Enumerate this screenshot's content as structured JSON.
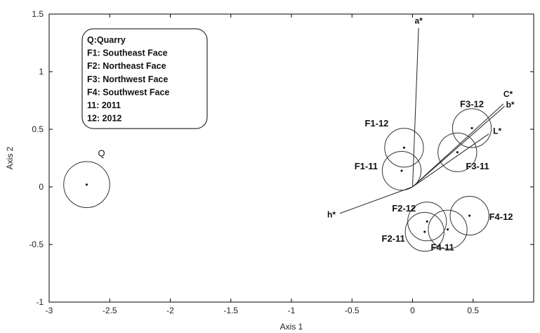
{
  "chart_data": {
    "type": "scatter",
    "xlabel": "Axis 1",
    "ylabel": "Axis 2",
    "xlim": [
      -3,
      1
    ],
    "ylim": [
      -1,
      1.5
    ],
    "xticks": [
      "-3",
      "-2.5",
      "-2",
      "-1.5",
      "-1",
      "-0.5",
      "0",
      "0.5"
    ],
    "yticks": [
      "-1",
      "-0.5",
      "0",
      "0.5",
      "1",
      "1.5"
    ],
    "xtick_values": [
      -3,
      -2.5,
      -2,
      -1.5,
      -1,
      -0.5,
      0,
      0.5
    ],
    "ytick_values": [
      -1,
      -0.5,
      0,
      0.5,
      1,
      1.5
    ],
    "points": [
      {
        "label": "Q",
        "x": -2.69,
        "y": 0.02,
        "r": 0.19
      },
      {
        "label": "F1-12",
        "x": -0.07,
        "y": 0.34,
        "r": 0.16
      },
      {
        "label": "F1-11",
        "x": -0.09,
        "y": 0.14,
        "r": 0.16
      },
      {
        "label": "F3-12",
        "x": 0.49,
        "y": 0.51,
        "r": 0.16
      },
      {
        "label": "F3-11",
        "x": 0.37,
        "y": 0.3,
        "r": 0.16
      },
      {
        "label": "F2-12",
        "x": 0.12,
        "y": -0.3,
        "r": 0.16
      },
      {
        "label": "F2-11",
        "x": 0.1,
        "y": -0.39,
        "r": 0.16
      },
      {
        "label": "F4-11",
        "x": 0.29,
        "y": -0.37,
        "r": 0.16
      },
      {
        "label": "F4-12",
        "x": 0.47,
        "y": -0.25,
        "r": 0.16
      }
    ],
    "vectors": [
      {
        "label": "a*",
        "x": 0.05,
        "y": 1.38
      },
      {
        "label": "C*",
        "x": 0.75,
        "y": 0.72
      },
      {
        "label": "b*",
        "x": 0.76,
        "y": 0.7
      },
      {
        "label": "L*",
        "x": 0.63,
        "y": 0.46
      },
      {
        "label": "h*",
        "x": -0.6,
        "y": -0.23
      }
    ],
    "legend": {
      "placement": "top-left",
      "entries": [
        "Q:Quarry",
        "F1: Southeast Face",
        "F2: Northeast Face",
        "F3: Northwest Face",
        "F4: Southwest Face",
        "11: 2011",
        "12: 2012"
      ]
    },
    "grid": false
  }
}
